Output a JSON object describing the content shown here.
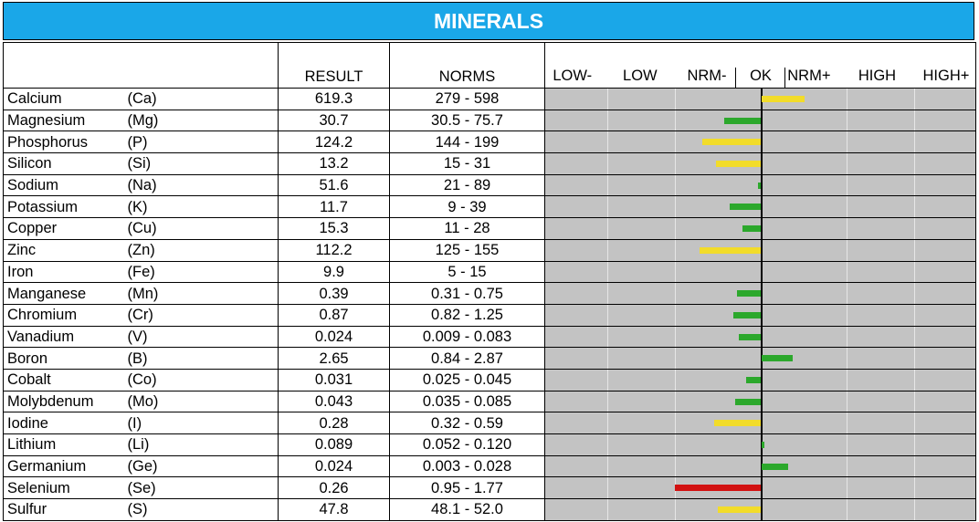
{
  "title": "MINERALS",
  "headers": {
    "result": "RESULT",
    "norms": "NORMS"
  },
  "scale_labels": [
    "LOW-",
    "LOW",
    "NRM-",
    "OK",
    "NRM+",
    "HIGH",
    "HIGH+"
  ],
  "colors": {
    "title_bg": "#1aa7e8",
    "ok": "#2ca82c",
    "warn": "#f2dc2a",
    "bad": "#d21212",
    "chart_bg": "#c3c3c3"
  },
  "chart_data": {
    "type": "bar",
    "description_scale": "horizontal deviation from normal; 0 = OK centre, negative = below norm, positive = above norm",
    "range": [
      -3.5,
      3.5
    ],
    "rows": [
      {
        "name": "Calcium",
        "symbol": "(Ca)",
        "result": "619.3",
        "norms": "279 - 598",
        "value": 0.7,
        "status": "warn"
      },
      {
        "name": "Magnesium",
        "symbol": "(Mg)",
        "result": "30.7",
        "norms": "30.5 - 75.7",
        "value": -0.6,
        "status": "ok"
      },
      {
        "name": "Phosphorus",
        "symbol": "(P)",
        "result": "124.2",
        "norms": "144 - 199",
        "value": -0.95,
        "status": "warn"
      },
      {
        "name": "Silicon",
        "symbol": "(Si)",
        "result": "13.2",
        "norms": "15 - 31",
        "value": -0.72,
        "status": "warn"
      },
      {
        "name": "Sodium",
        "symbol": "(Na)",
        "result": "51.6",
        "norms": "21 - 89",
        "value": -0.05,
        "status": "ok"
      },
      {
        "name": "Potassium",
        "symbol": "(K)",
        "result": "11.7",
        "norms": "9 - 39",
        "value": -0.5,
        "status": "ok"
      },
      {
        "name": "Copper",
        "symbol": "(Cu)",
        "result": "15.3",
        "norms": "11 - 28",
        "value": -0.3,
        "status": "ok"
      },
      {
        "name": "Zinc",
        "symbol": "(Zn)",
        "result": "112.2",
        "norms": "125 - 155",
        "value": -1.0,
        "status": "warn"
      },
      {
        "name": "Iron",
        "symbol": "(Fe)",
        "result": "9.9",
        "norms": "5 - 15",
        "value": 0,
        "status": "ok"
      },
      {
        "name": "Manganese",
        "symbol": "(Mn)",
        "result": "0.39",
        "norms": "0.31 - 0.75",
        "value": -0.38,
        "status": "ok"
      },
      {
        "name": "Chromium",
        "symbol": "(Cr)",
        "result": "0.87",
        "norms": "0.82 - 1.25",
        "value": -0.45,
        "status": "ok"
      },
      {
        "name": "Vanadium",
        "symbol": "(V)",
        "result": "0.024",
        "norms": "0.009 - 0.083",
        "value": -0.36,
        "status": "ok"
      },
      {
        "name": "Boron",
        "symbol": "(B)",
        "result": "2.65",
        "norms": "0.84 - 2.87",
        "value": 0.5,
        "status": "ok"
      },
      {
        "name": "Cobalt",
        "symbol": "(Co)",
        "result": "0.031",
        "norms": "0.025 - 0.045",
        "value": -0.24,
        "status": "ok"
      },
      {
        "name": "Molybdenum",
        "symbol": "(Mo)",
        "result": "0.043",
        "norms": "0.035 - 0.085",
        "value": -0.41,
        "status": "ok"
      },
      {
        "name": "Iodine",
        "symbol": "(I)",
        "result": "0.28",
        "norms": "0.32 - 0.59",
        "value": -0.75,
        "status": "warn"
      },
      {
        "name": "Lithium",
        "symbol": "(Li)",
        "result": "0.089",
        "norms": "0.052 - 0.120",
        "value": 0.05,
        "status": "ok"
      },
      {
        "name": "Germanium",
        "symbol": "(Ge)",
        "result": "0.024",
        "norms": "0.003 - 0.028",
        "value": 0.43,
        "status": "ok"
      },
      {
        "name": "Selenium",
        "symbol": "(Se)",
        "result": "0.26",
        "norms": "0.95 - 1.77",
        "value": -1.4,
        "status": "bad"
      },
      {
        "name": "Sulfur",
        "symbol": "(S)",
        "result": "47.8",
        "norms": "48.1 - 52.0",
        "value": -0.7,
        "status": "warn"
      }
    ]
  }
}
